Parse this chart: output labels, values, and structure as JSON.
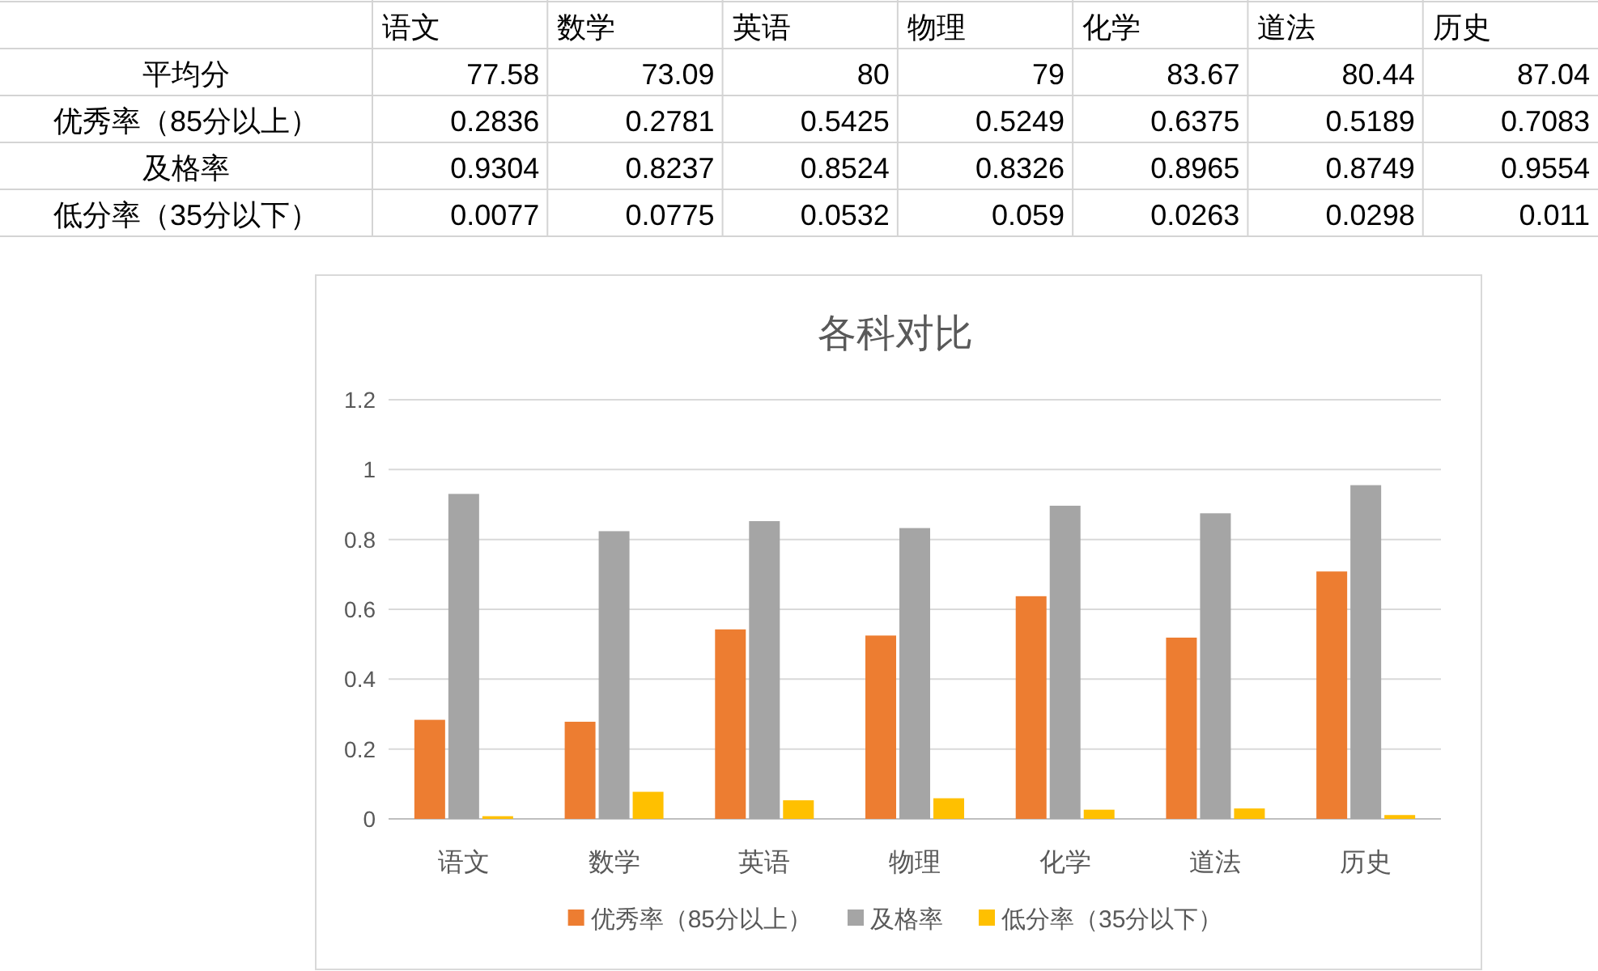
{
  "chart_data": [
    {
      "type": "other",
      "categories": [
        "语文",
        "数学",
        "英语",
        "物理",
        "化学",
        "道法",
        "历史"
      ],
      "y_categories": [
        "平均分",
        "优秀率（85分以上）",
        "及格率",
        "低分率（35分以下）"
      ],
      "cell_labels": [
        [
          "77.58",
          "73.09",
          "80",
          "79",
          "83.67",
          "80.44",
          "87.04"
        ],
        [
          "0.2836",
          "0.2781",
          "0.5425",
          "0.5249",
          "0.6375",
          "0.5189",
          "0.7083"
        ],
        [
          "0.9304",
          "0.8237",
          "0.8524",
          "0.8326",
          "0.8965",
          "0.8749",
          "0.9554"
        ],
        [
          "0.0077",
          "0.0775",
          "0.0532",
          "0.059",
          "0.0263",
          "0.0298",
          "0.011"
        ]
      ]
    },
    {
      "type": "bar",
      "title": "各科对比",
      "categories": [
        "语文",
        "数学",
        "英语",
        "物理",
        "化学",
        "道法",
        "历史"
      ],
      "series": [
        {
          "name": "优秀率（85分以上）",
          "color": "#ed7d31",
          "values": [
            0.2836,
            0.2781,
            0.5425,
            0.5249,
            0.6375,
            0.5189,
            0.7083
          ]
        },
        {
          "name": "及格率",
          "color": "#a5a5a5",
          "values": [
            0.9304,
            0.8237,
            0.8524,
            0.8326,
            0.8965,
            0.8749,
            0.9554
          ]
        },
        {
          "name": "低分率（35分以下）",
          "color": "#ffc000",
          "values": [
            0.0077,
            0.0775,
            0.0532,
            0.059,
            0.0263,
            0.0298,
            0.011
          ]
        }
      ],
      "ylim": [
        0,
        1.2
      ],
      "yticks": [
        0,
        0.2,
        0.4,
        0.6,
        0.8,
        1,
        1.2
      ],
      "grid": "y",
      "legend": "bottom"
    }
  ]
}
